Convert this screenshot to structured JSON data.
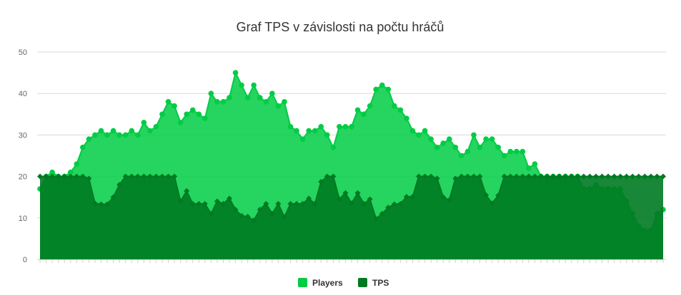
{
  "chart_data": {
    "type": "area",
    "title": "Graf TPS v závislosti na počtu hráčů",
    "xlabel": "",
    "ylabel": "",
    "ylim": [
      0,
      50
    ],
    "yticks": [
      0,
      10,
      20,
      30,
      40,
      50
    ],
    "grid": true,
    "legend_position": "bottom",
    "series": [
      {
        "name": "Players",
        "color": "#00cc44",
        "marker": "circle",
        "values": [
          17,
          20,
          21,
          20,
          20,
          21,
          23,
          27,
          29,
          30,
          31,
          30,
          31,
          30,
          30,
          31,
          30,
          33,
          31,
          32,
          35,
          38,
          37,
          33,
          35,
          36,
          35,
          34,
          40,
          38,
          38,
          39,
          45,
          42,
          39,
          42,
          39,
          38,
          40,
          37,
          38,
          32,
          31,
          29,
          31,
          31,
          32,
          30,
          27,
          32,
          32,
          32,
          36,
          35,
          37,
          41,
          42,
          41,
          37,
          36,
          34,
          31,
          30,
          31,
          29,
          27,
          28,
          29,
          27,
          25,
          26,
          30,
          27,
          29,
          29,
          27,
          25,
          26,
          26,
          26,
          22,
          23,
          20,
          20,
          20,
          20,
          20,
          20,
          20,
          17,
          17,
          18,
          17,
          17,
          17,
          17,
          14,
          11,
          8,
          7,
          7,
          11,
          12
        ]
      },
      {
        "name": "TPS",
        "color": "#007a22",
        "marker": "diamond",
        "values": [
          20,
          20,
          20,
          20,
          20,
          20,
          20,
          20,
          19.5,
          13.5,
          13.3,
          13.3,
          15,
          18,
          20,
          20,
          20,
          20,
          20,
          20,
          20,
          20,
          20,
          14,
          16.5,
          13.4,
          13.4,
          13.4,
          11,
          14,
          13.4,
          14.7,
          12,
          10.5,
          10.3,
          9.4,
          12,
          13.4,
          11,
          13.4,
          10.2,
          13.4,
          13.4,
          13.4,
          14.7,
          13.4,
          18.7,
          20,
          20,
          14.5,
          16,
          13.5,
          16,
          13.4,
          14.5,
          9.8,
          11,
          12.5,
          13.3,
          13.4,
          15.1,
          15.1,
          20,
          20,
          20,
          19.5,
          15,
          14.3,
          19.5,
          20,
          20,
          20,
          20,
          15.5,
          13.5,
          15.4,
          20,
          20,
          20,
          20,
          20,
          20,
          20,
          20,
          20,
          20,
          20,
          20,
          20,
          20,
          20,
          20,
          20,
          20,
          20,
          20,
          20,
          20,
          20,
          20,
          20,
          20,
          20
        ]
      }
    ]
  }
}
